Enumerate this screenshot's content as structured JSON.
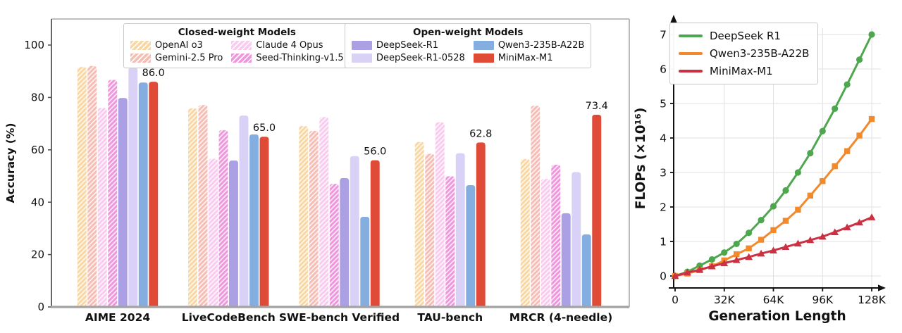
{
  "figure": {
    "background": "#ffffff",
    "text_color": "#111111",
    "grid_color": "#e2e2e2",
    "spine_color": "#9b9b9b",
    "axis_color": "#1a1a1a"
  },
  "chart_data": [
    {
      "id": "benchmark-accuracy-bars",
      "type": "bar",
      "ylabel": "Accuracy (%)",
      "ylim": [
        0,
        110
      ],
      "yticks": [
        0,
        20,
        40,
        60,
        80,
        100
      ],
      "grid": false,
      "categories": [
        "AIME 2024",
        "LiveCodeBench",
        "SWE-bench Verified",
        "TAU-bench",
        "MRCR (4-needle)"
      ],
      "legend_groups": [
        {
          "title": "Closed-weight Models",
          "items": [
            "OpenAI o3",
            "Gemini-2.5 Pro",
            "Claude 4 Opus",
            "Seed-Thinking-v1.5"
          ]
        },
        {
          "title": "Open-weight Models",
          "items": [
            "DeepSeek-R1",
            "DeepSeek-R1-0528",
            "Qwen3-235B-A22B",
            "MiniMax-M1"
          ]
        }
      ],
      "series": [
        {
          "name": "OpenAI o3",
          "color": "#F8D7A2",
          "hatch": true,
          "values": [
            91.6,
            75.8,
            69.1,
            63.0,
            56.5
          ]
        },
        {
          "name": "Gemini-2.5 Pro",
          "color": "#F6BDB4",
          "hatch": true,
          "values": [
            92.0,
            77.1,
            67.2,
            58.5,
            76.8
          ]
        },
        {
          "name": "Claude 4 Opus",
          "color": "#F8CBEF",
          "hatch": true,
          "values": [
            76.0,
            56.6,
            72.5,
            70.5,
            48.9
          ]
        },
        {
          "name": "Seed-Thinking-v1.5",
          "color": "#EF96DC",
          "hatch": true,
          "values": [
            86.7,
            67.5,
            47.0,
            49.9,
            54.3
          ]
        },
        {
          "name": "DeepSeek-R1",
          "color": "#ABA0E4",
          "hatch": false,
          "values": [
            79.8,
            55.9,
            49.2,
            null,
            35.8
          ]
        },
        {
          "name": "DeepSeek-R1-0528",
          "color": "#D9D2F6",
          "hatch": false,
          "values": [
            91.4,
            73.1,
            57.6,
            58.7,
            51.5
          ]
        },
        {
          "name": "Qwen3-235B-A22B",
          "color": "#84AEE0",
          "hatch": false,
          "values": [
            85.7,
            65.9,
            34.4,
            46.5,
            27.7
          ]
        },
        {
          "name": "MiniMax-M1",
          "color": "#E04B38",
          "hatch": false,
          "values": [
            86.0,
            65.0,
            56.0,
            62.8,
            73.4
          ],
          "annotate": true
        }
      ],
      "annotations": [
        "86.0",
        "65.0",
        "56.0",
        "62.8",
        "73.4"
      ]
    },
    {
      "id": "flops-vs-generation-length",
      "type": "line",
      "xlabel": "Generation Length",
      "ylabel": "FLOPs (×10¹⁶)",
      "grid": true,
      "xlim_k": [
        0,
        128
      ],
      "ylim": [
        0,
        7
      ],
      "yticks": [
        0,
        1,
        2,
        3,
        4,
        5,
        6,
        7
      ],
      "xticks": {
        "values_k": [
          0,
          32,
          64,
          96,
          128
        ],
        "labels": [
          "0",
          "32K",
          "64K",
          "96K",
          "128K"
        ]
      },
      "x_k": [
        0,
        8,
        16,
        24,
        32,
        40,
        48,
        56,
        64,
        72,
        80,
        88,
        96,
        104,
        112,
        120,
        128
      ],
      "series": [
        {
          "name": "DeepSeek R1",
          "color": "#4EA74E",
          "marker": "circle",
          "values": [
            0,
            0.12,
            0.3,
            0.48,
            0.68,
            0.93,
            1.25,
            1.62,
            2.02,
            2.48,
            3.0,
            3.56,
            4.2,
            4.85,
            5.55,
            6.27,
            7.0
          ]
        },
        {
          "name": "Qwen3-235B-A22B",
          "color": "#F08A2D",
          "marker": "square",
          "values": [
            0,
            0.07,
            0.17,
            0.28,
            0.45,
            0.63,
            0.8,
            1.05,
            1.33,
            1.6,
            1.92,
            2.33,
            2.75,
            3.18,
            3.62,
            4.07,
            4.55
          ]
        },
        {
          "name": "MiniMax-M1",
          "color": "#CB3142",
          "marker": "triangle",
          "values": [
            0,
            0.1,
            0.18,
            0.28,
            0.37,
            0.46,
            0.55,
            0.65,
            0.74,
            0.84,
            0.94,
            1.04,
            1.14,
            1.27,
            1.41,
            1.55,
            1.7
          ]
        }
      ]
    }
  ]
}
